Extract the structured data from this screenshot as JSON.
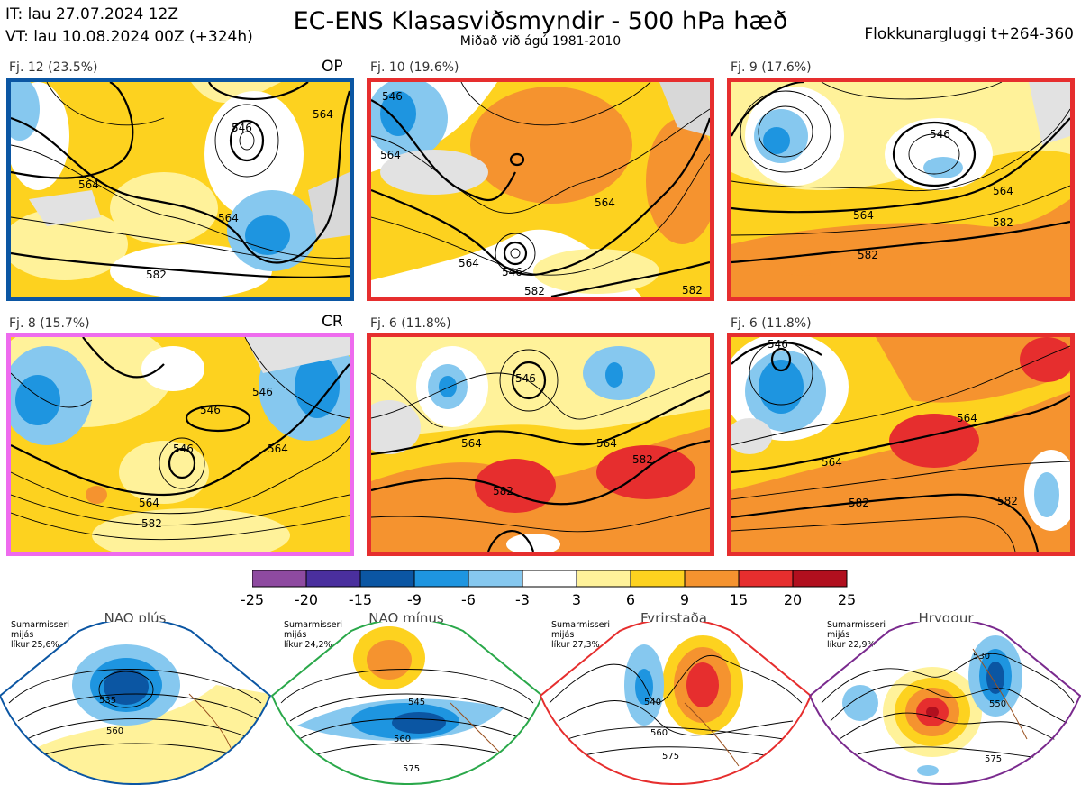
{
  "header": {
    "it_line": "IT: lau 27.07.2024 12Z",
    "vt_line": "VT: lau 10.08.2024 00Z  (+324h)",
    "title": "EC-ENS Klasasviðsmyndir - 500 hPa hæð",
    "subtitle": "Miðað við ágú 1981-2010",
    "window": "Flokkunargluggi t+264-360"
  },
  "clusters": [
    {
      "label": "Fj. 12 (23.5%)",
      "tag": "OP",
      "border": "#0b56a3",
      "contour_labels": [
        "546",
        "564",
        "564",
        "582",
        "564"
      ]
    },
    {
      "label": "Fj. 10 (19.6%)",
      "tag": "",
      "border": "#e62e2e",
      "contour_labels": [
        "546",
        "564",
        "564",
        "564",
        "546",
        "582",
        "582"
      ]
    },
    {
      "label": "Fj. 9 (17.6%)",
      "tag": "",
      "border": "#e62e2e",
      "contour_labels": [
        "546",
        "564",
        "564",
        "582",
        "582"
      ]
    },
    {
      "label": "Fj. 8 (15.7%)",
      "tag": "CR",
      "border": "#ee6bee",
      "contour_labels": [
        "546",
        "546",
        "546",
        "564",
        "564",
        "582"
      ]
    },
    {
      "label": "Fj. 6 (11.8%)",
      "tag": "",
      "border": "#e62e2e",
      "contour_labels": [
        "546",
        "564",
        "564",
        "582",
        "582"
      ]
    },
    {
      "label": "Fj. 6 (11.8%)",
      "tag": "",
      "border": "#e62e2e",
      "contour_labels": [
        "546",
        "564",
        "564",
        "582",
        "582"
      ]
    }
  ],
  "colorbar": {
    "colors": [
      "#8e4aa0",
      "#4a2f9e",
      "#0b56a3",
      "#1e95e0",
      "#86c8ef",
      "#ffffff",
      "#fff29a",
      "#fdd21f",
      "#f5932f",
      "#e62e2e",
      "#b10f1e"
    ],
    "ticks": [
      "-25",
      "-20",
      "-15",
      "-9",
      "-6",
      "-3",
      "3",
      "6",
      "9",
      "15",
      "20",
      "25"
    ]
  },
  "regimes": [
    {
      "name": "NAO plús",
      "season": "Sumarmisseri",
      "mean": "mijás",
      "prob": "líkur 25,6%",
      "color": "#0b56a3",
      "contour_labels": [
        "535",
        "560"
      ]
    },
    {
      "name": "NAO mínus",
      "season": "Sumarmisseri",
      "mean": "mijás",
      "prob": "líkur 24,2%",
      "color": "#2aa84a",
      "contour_labels": [
        "545",
        "560",
        "575"
      ]
    },
    {
      "name": "Fyrirstaða",
      "season": "Sumarmisseri",
      "mean": "mijás",
      "prob": "líkur 27,3%",
      "color": "#e62e2e",
      "contour_labels": [
        "540",
        "560",
        "575"
      ]
    },
    {
      "name": "Hryggur",
      "season": "Sumarmisseri",
      "mean": "mijás",
      "prob": "líkur 22,9%",
      "color": "#ee6bee",
      "contour_labels": [
        "530",
        "550",
        "575"
      ]
    }
  ]
}
